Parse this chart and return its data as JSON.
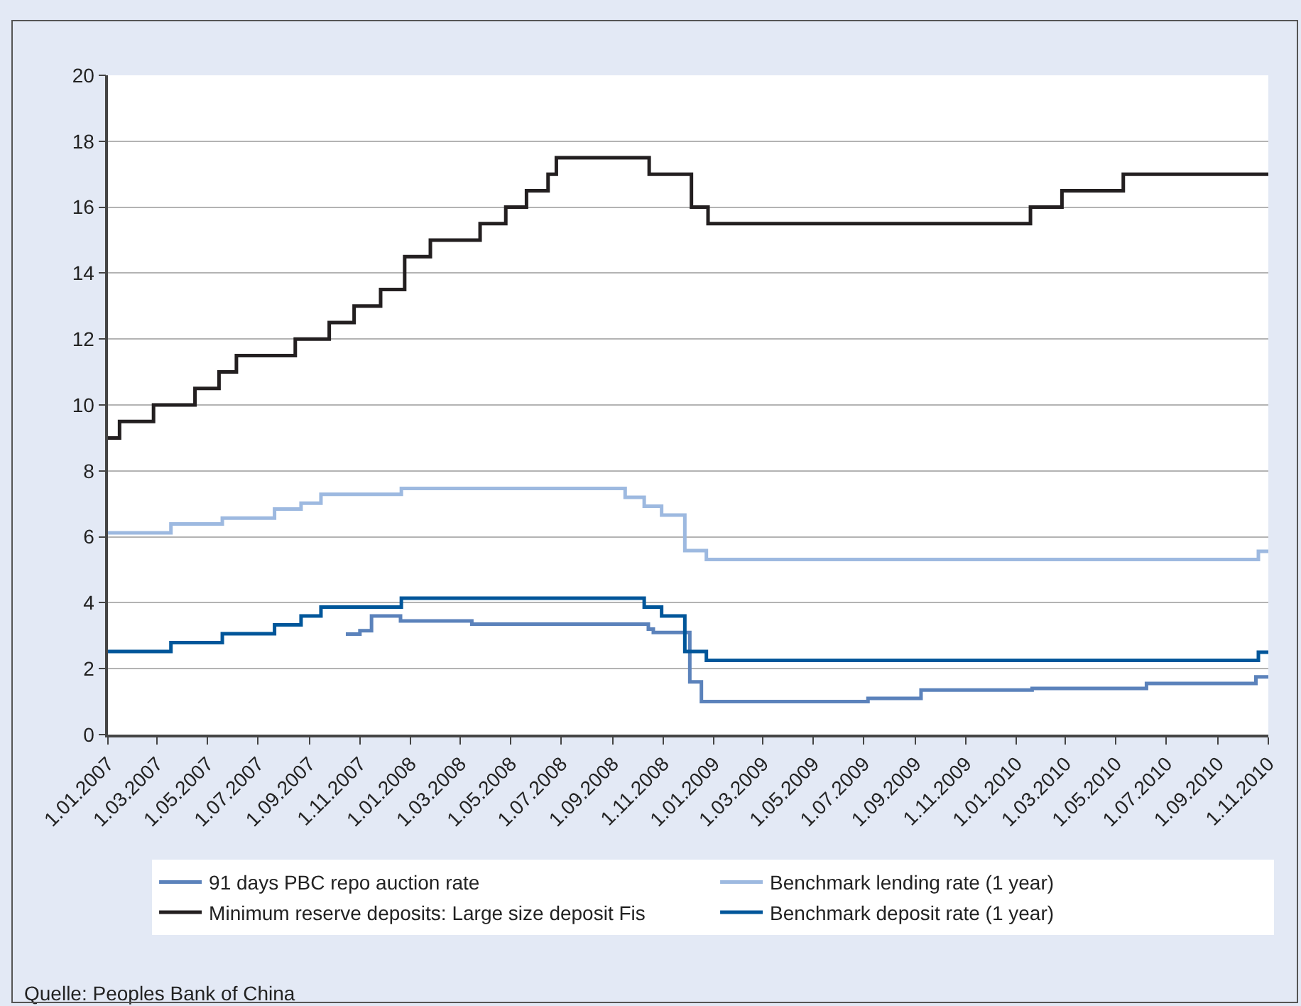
{
  "chart_data": {
    "type": "step",
    "xlim": [
      "2007-01-01",
      "2010-11-01"
    ],
    "xticks": [
      {
        "value": "2007-01-01",
        "label": "1.01.2007"
      },
      {
        "value": "2007-03-01",
        "label": "1.03.2007"
      },
      {
        "value": "2007-05-01",
        "label": "1.05.2007"
      },
      {
        "value": "2007-07-01",
        "label": "1.07.2007"
      },
      {
        "value": "2007-09-01",
        "label": "1.09.2007"
      },
      {
        "value": "2007-11-01",
        "label": "1.11.2007"
      },
      {
        "value": "2008-01-01",
        "label": "1.01.2008"
      },
      {
        "value": "2008-03-01",
        "label": "1.03.2008"
      },
      {
        "value": "2008-05-01",
        "label": "1.05.2008"
      },
      {
        "value": "2008-07-01",
        "label": "1.07.2008"
      },
      {
        "value": "2008-09-01",
        "label": "1.09.2008"
      },
      {
        "value": "2008-11-01",
        "label": "1.11.2008"
      },
      {
        "value": "2009-01-01",
        "label": "1.01.2009"
      },
      {
        "value": "2009-03-01",
        "label": "1.03.2009"
      },
      {
        "value": "2009-05-01",
        "label": "1.05.2009"
      },
      {
        "value": "2009-07-01",
        "label": "1.07.2009"
      },
      {
        "value": "2009-09-01",
        "label": "1.09.2009"
      },
      {
        "value": "2009-11-01",
        "label": "1.11.2009"
      },
      {
        "value": "2010-01-01",
        "label": "1.01.2010"
      },
      {
        "value": "2010-03-01",
        "label": "1.03.2010"
      },
      {
        "value": "2010-05-01",
        "label": "1.05.2010"
      },
      {
        "value": "2010-07-01",
        "label": "1.07.2010"
      },
      {
        "value": "2010-09-01",
        "label": "1.09.2010"
      },
      {
        "value": "2010-11-01",
        "label": "1.11.2010"
      }
    ],
    "ylim": [
      0,
      20
    ],
    "yticks": [
      0,
      2,
      4,
      6,
      8,
      10,
      12,
      14,
      16,
      18,
      20
    ],
    "grid": "y",
    "legend": "bottom",
    "marker": "none",
    "line_style": "solid",
    "series": [
      {
        "name": "91 days PBC repo auction rate",
        "color": "#5b82bb",
        "x": [
          "2007-10-15",
          "2007-11-01",
          "2007-11-15",
          "2007-12-20",
          "2008-03-15",
          "2008-10-14",
          "2008-10-20",
          "2008-12-03",
          "2008-12-17",
          "2009-07-06",
          "2009-09-08",
          "2010-01-20",
          "2010-06-07",
          "2010-10-17",
          "2010-11-01"
        ],
        "values": [
          3.05,
          3.15,
          3.6,
          3.45,
          3.35,
          3.2,
          3.1,
          1.6,
          1.0,
          1.1,
          1.35,
          1.4,
          1.55,
          1.75,
          1.75
        ]
      },
      {
        "name": "Benchmark lending rate (1 year)",
        "color": "#9db9e0",
        "x": [
          "2007-01-01",
          "2007-03-18",
          "2007-05-19",
          "2007-07-21",
          "2007-08-22",
          "2007-09-15",
          "2007-12-21",
          "2008-09-16",
          "2008-10-09",
          "2008-10-30",
          "2008-11-27",
          "2008-12-23",
          "2010-10-20",
          "2010-11-01"
        ],
        "values": [
          6.12,
          6.39,
          6.57,
          6.84,
          7.02,
          7.29,
          7.47,
          7.2,
          6.93,
          6.66,
          5.58,
          5.31,
          5.56,
          5.56
        ]
      },
      {
        "name": "Minimum reserve deposits: Large size deposit Fis",
        "color": "#231f20",
        "x": [
          "2007-01-01",
          "2007-01-15",
          "2007-02-25",
          "2007-04-16",
          "2007-05-15",
          "2007-06-05",
          "2007-08-15",
          "2007-09-25",
          "2007-10-25",
          "2007-11-26",
          "2007-12-25",
          "2008-01-25",
          "2008-03-25",
          "2008-04-25",
          "2008-05-20",
          "2008-06-15",
          "2008-06-25",
          "2008-10-15",
          "2008-12-05",
          "2008-12-25",
          "2010-01-18",
          "2010-02-25",
          "2010-05-10",
          "2010-11-01"
        ],
        "values": [
          9.0,
          9.5,
          10.0,
          10.5,
          11.0,
          11.5,
          12.0,
          12.5,
          13.0,
          13.5,
          14.5,
          15.0,
          15.5,
          16.0,
          16.5,
          17.0,
          17.5,
          17.0,
          16.0,
          15.5,
          16.0,
          16.5,
          17.0,
          17.0
        ]
      },
      {
        "name": "Benchmark deposit rate (1 year)",
        "color": "#00569a",
        "x": [
          "2007-01-01",
          "2007-03-18",
          "2007-05-19",
          "2007-07-21",
          "2007-08-22",
          "2007-09-15",
          "2007-12-21",
          "2008-10-09",
          "2008-10-30",
          "2008-11-27",
          "2008-12-23",
          "2010-10-20",
          "2010-11-01"
        ],
        "values": [
          2.52,
          2.79,
          3.06,
          3.33,
          3.6,
          3.87,
          4.14,
          3.87,
          3.6,
          2.52,
          2.25,
          2.5,
          2.5
        ]
      }
    ],
    "annotations": [
      "Quelle: Peoples Bank of China"
    ]
  }
}
